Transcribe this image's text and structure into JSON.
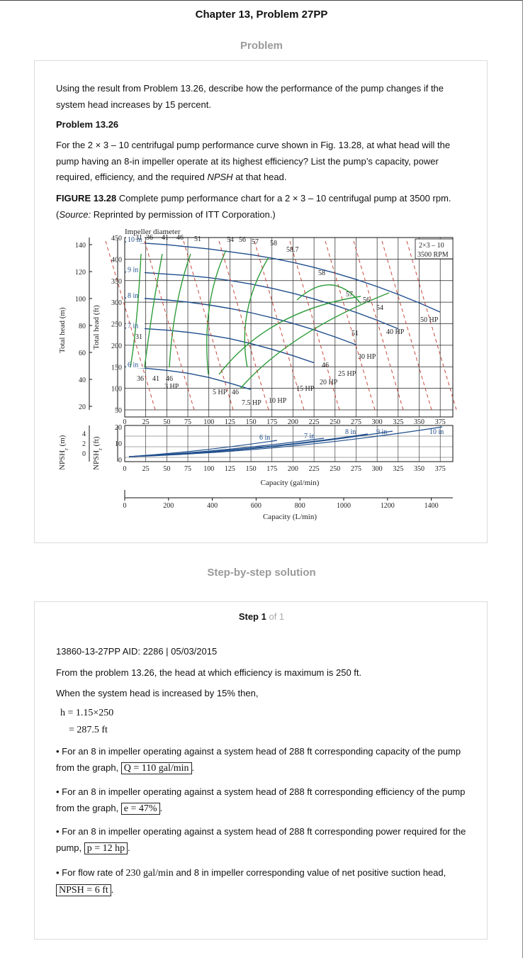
{
  "header": {
    "chapter_title": "Chapter 13, Problem 27PP"
  },
  "problem_section": {
    "label": "Problem",
    "question": "Using the result from Problem 13.26, describe how the performance of the pump changes if the system head increases by 15 percent.",
    "sub_problem_title": "Problem 13.26",
    "sub_problem_text": "For the 2 × 3 – 10 centrifugal pump performance curve shown in Fig. 13.28, at what head will the pump having an 8-in impeller operate at its highest efficiency? List the pump’s capacity, power required, efficiency, and the required",
    "sub_problem_npsh": "NPSH",
    "sub_problem_tail": "at that head.",
    "figure_label": "FIGURE 13.28",
    "figure_caption": "Complete pump performance chart for a 2 × 3 – 10 centrifugal pump at 3500 rpm. (",
    "figure_source_word": "Source:",
    "figure_source_rest": "Reprinted by permission of ITT Corporation.)"
  },
  "chart": {
    "impeller_title": "Impeller diameter",
    "model_line1": "2×3 – 10",
    "model_line2": "3500 RPM",
    "y_head_m_label": "Total head (m)",
    "y_head_ft_label": "Total head (ft)",
    "y_npsh_m_label": "NPSH",
    "y_npsh_ft_label": "NPSH",
    "npsh_sub": "r",
    "npsh_m_unit": " (m)",
    "npsh_ft_unit": " (ft)",
    "x_gpm_label": "Capacity (gal/min)",
    "x_lpm_label": "Capacity (L/min)",
    "head_m_ticks": [
      "140",
      "120",
      "100",
      "80",
      "60",
      "40",
      "20"
    ],
    "head_ft_ticks": [
      "450",
      "400",
      "350",
      "300",
      "250",
      "200",
      "150",
      "100",
      "50"
    ],
    "gpm_ticks": [
      "0",
      "25",
      "50",
      "75",
      "100",
      "125",
      "150",
      "175",
      "200",
      "225",
      "250",
      "275",
      "300",
      "325",
      "350",
      "375"
    ],
    "npsh_ft_ticks": [
      "20",
      "10",
      "0"
    ],
    "npsh_m_ticks": [
      "4",
      "2",
      "0"
    ],
    "lpm_ticks": [
      "0",
      "200",
      "400",
      "600",
      "800",
      "1000",
      "1200",
      "1400"
    ],
    "impeller_labels": [
      "10 in",
      "9 in",
      "8 in",
      "7 in",
      "6 in"
    ],
    "npsh_curve_labels": [
      "6 in",
      "7 in",
      "8 in",
      "9 in",
      "10 in"
    ],
    "efficiency_labels": [
      "31",
      "36",
      "41",
      "46",
      "51",
      "54",
      "56",
      "57",
      "58",
      "58.7",
      "58",
      "57",
      "56",
      "54",
      "31",
      "36",
      "41",
      "46",
      "46",
      "46",
      "51"
    ],
    "hp_labels": [
      "3 HP",
      "5 HP",
      "7.5 HP",
      "10 HP",
      "15 HP",
      "20 HP",
      "25 HP",
      "30 HP",
      "40 HP",
      "50 HP"
    ],
    "colors": {
      "impeller": "#1f4e8c",
      "efficiency": "#2e9c3a",
      "hp": "#c0392b",
      "grid": "#222"
    }
  },
  "solution_section": {
    "label": "Step-by-step solution"
  },
  "step": {
    "title_bold": "Step 1",
    "title_rest": "of 1",
    "aid_line": "13860-13-27PP AID: 2286 | 05/03/2015",
    "line1": "From the problem 13.26, the head at which efficiency is maximum is 250 ft.",
    "line2": "When the system head is increased by 15% then,",
    "eq1": "h = 1.15×250",
    "eq2": "= 287.5 ft",
    "bullet1": "• For an 8 in impeller operating against a system head of 288 ft corresponding capacity of the pump from the graph,",
    "answer1": "Q = 110 gal/min",
    "bullet2": "• For an 8 in impeller operating against a system head of 288 ft corresponding efficiency of the pump from the graph,",
    "answer2": "e = 47%",
    "bullet3": "• For an 8 in impeller operating against a system head of 288 ft corresponding power required for the pump,",
    "answer3": "p = 12 hp",
    "bullet4_pre": "• For flow rate of",
    "bullet4_flow": "230 gal/min",
    "bullet4_post": "and 8 in impeller corresponding value of net positive suction head,",
    "answer4": "NPSH = 6 ft"
  }
}
